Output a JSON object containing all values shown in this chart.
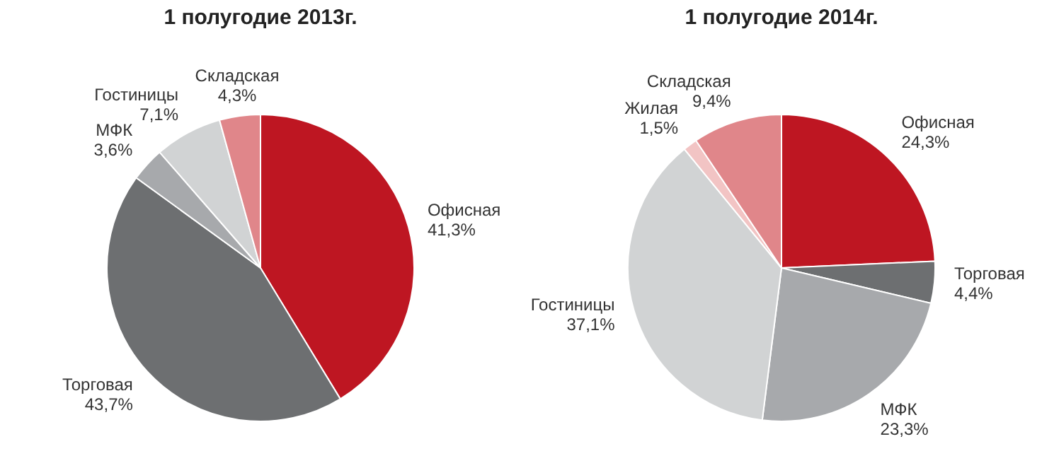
{
  "chart_data": [
    {
      "type": "pie",
      "title": "1 полугодие 2013г.",
      "categories": [
        "Офисная",
        "Торговая",
        "МФК",
        "Гостиницы",
        "Складская"
      ],
      "values": [
        41.3,
        43.7,
        3.6,
        7.1,
        4.3
      ],
      "colors": [
        "#be1622",
        "#6d6f71",
        "#a7a9ac",
        "#d1d3d4",
        "#e0868a"
      ],
      "value_labels": [
        "41,3%",
        "43,7%",
        "3,6%",
        "7,1%",
        "4,3%"
      ],
      "legend": false
    },
    {
      "type": "pie",
      "title": "1 полугодие 2014г.",
      "categories": [
        "Офисная",
        "Торговая",
        "МФК",
        "Гостиницы",
        "Жилая",
        "Складская"
      ],
      "values": [
        24.3,
        4.4,
        23.3,
        37.1,
        1.5,
        9.4
      ],
      "colors": [
        "#be1622",
        "#6d6f71",
        "#a7a9ac",
        "#d1d3d4",
        "#f2c4c4",
        "#e0868a"
      ],
      "value_labels": [
        "24,3%",
        "4,4%",
        "23,3%",
        "37,1%",
        "1,5%",
        "9,4%"
      ],
      "legend": false
    }
  ]
}
